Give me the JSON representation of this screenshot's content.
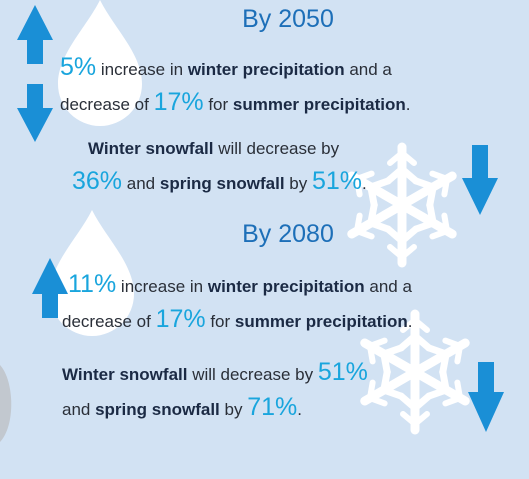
{
  "sections": [
    {
      "title": "By 2050",
      "precipitation": [
        "5%",
        " increase in ",
        "winter precipitation",
        " and a",
        "decrease of ",
        "17%",
        " for ",
        "summer precipitation",
        "."
      ],
      "snowfall": [
        "Winter snowfall",
        " will decrease by",
        "36%",
        " and ",
        "spring snowfall",
        " by ",
        "51%",
        "."
      ]
    },
    {
      "title": "By 2080",
      "precipitation": [
        "11%",
        " increase in ",
        "winter precipitation",
        " and a",
        "decrease of ",
        "17%",
        " for ",
        "summer precipitation",
        "."
      ],
      "snowfall": [
        "Winter snowfall",
        " will decrease by ",
        "51%",
        "and ",
        "spring snowfall",
        " by ",
        "71%",
        "."
      ]
    }
  ]
}
